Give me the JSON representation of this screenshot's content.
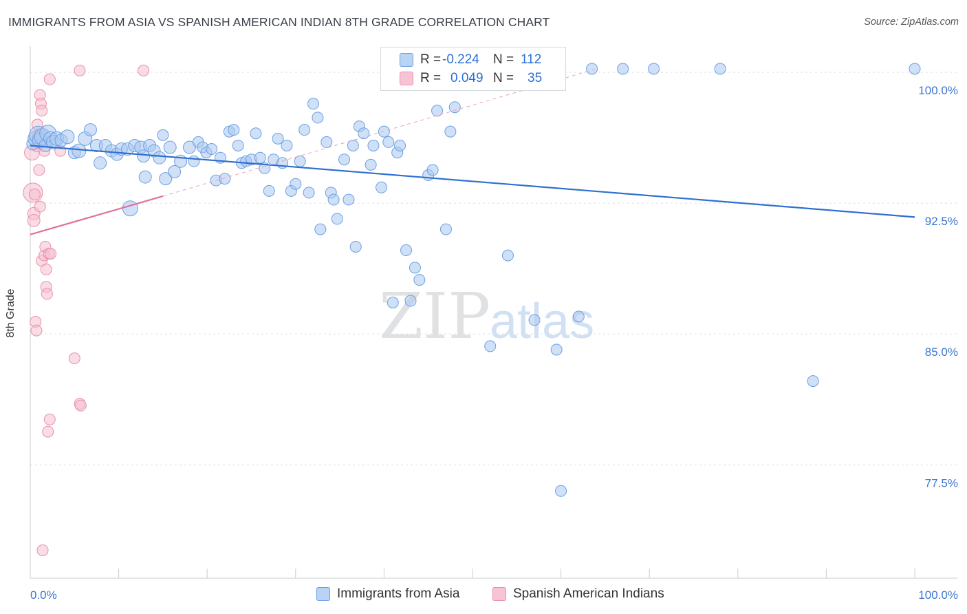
{
  "title": "IMMIGRANTS FROM ASIA VS SPANISH AMERICAN INDIAN 8TH GRADE CORRELATION CHART",
  "source": "Source: ZipAtlas.com",
  "watermark": {
    "zip": "ZIP",
    "atlas": "atlas"
  },
  "legend": {
    "r_label": "R =",
    "n_label": "N =",
    "rows": [
      {
        "r": "-0.224",
        "n": "112",
        "fill": "#b9d3f5",
        "stroke": "#6b9fe3"
      },
      {
        "r": "0.049",
        "n": "35",
        "fill": "#f8c3d4",
        "stroke": "#ea8fab"
      }
    ]
  },
  "bottom_legend": [
    "Immigrants from Asia",
    "Spanish American Indians"
  ],
  "chart_data": {
    "type": "scatter",
    "ylabel": "8th Grade",
    "xlabel": "",
    "xlim": [
      0,
      100
    ],
    "ylim": [
      71.0,
      101.5
    ],
    "x_tick_labels": [
      "0.0%",
      "100.0%"
    ],
    "y_ticks": [
      {
        "value": 100.0,
        "label": "100.0%"
      },
      {
        "value": 92.5,
        "label": "92.5%"
      },
      {
        "value": 85.0,
        "label": "85.0%"
      },
      {
        "value": 77.5,
        "label": "77.5%"
      }
    ],
    "grid": "horizontal-dashed",
    "colors": {
      "blue_fill": "#a9c8f0",
      "blue_stroke": "#6b9fe3",
      "blue_line": "#2f6fd0",
      "pink_fill": "#f6bfd0",
      "pink_stroke": "#ea8fab",
      "pink_line": "#e0709a",
      "tick_label": "#3b74d1"
    },
    "series": [
      {
        "name": "Immigrants from Asia",
        "color": "#6b9fe3",
        "trend": {
          "x0": 0,
          "y0": 95.8,
          "x1": 100,
          "y1": 91.7
        },
        "points": [
          [
            0.3,
            95.9
          ],
          [
            0.6,
            96.2
          ],
          [
            0.9,
            96.4
          ],
          [
            1.1,
            96.1
          ],
          [
            1.4,
            96.3
          ],
          [
            1.7,
            95.8
          ],
          [
            2.0,
            96.5
          ],
          [
            2.3,
            96.2
          ],
          [
            2.6,
            96.0
          ],
          [
            3.0,
            96.2
          ],
          [
            3.5,
            96.1
          ],
          [
            4.2,
            96.3
          ],
          [
            5.0,
            95.4
          ],
          [
            5.5,
            95.5
          ],
          [
            6.2,
            96.2
          ],
          [
            6.8,
            96.7
          ],
          [
            7.5,
            95.8
          ],
          [
            7.9,
            94.8
          ],
          [
            8.5,
            95.8
          ],
          [
            9.2,
            95.5
          ],
          [
            9.8,
            95.3
          ],
          [
            10.3,
            95.6
          ],
          [
            11.0,
            95.6
          ],
          [
            11.3,
            92.2
          ],
          [
            11.8,
            95.8
          ],
          [
            12.5,
            95.7
          ],
          [
            12.8,
            95.2
          ],
          [
            13.0,
            94.0
          ],
          [
            13.5,
            95.8
          ],
          [
            14.0,
            95.5
          ],
          [
            14.6,
            95.1
          ],
          [
            15.0,
            96.4
          ],
          [
            15.3,
            93.9
          ],
          [
            15.8,
            95.7
          ],
          [
            16.3,
            94.3
          ],
          [
            17.0,
            94.9
          ],
          [
            18.0,
            95.7
          ],
          [
            18.5,
            94.9
          ],
          [
            19.0,
            96.0
          ],
          [
            19.5,
            95.7
          ],
          [
            19.9,
            95.4
          ],
          [
            20.5,
            95.6
          ],
          [
            21.0,
            93.8
          ],
          [
            21.5,
            95.1
          ],
          [
            22.0,
            93.9
          ],
          [
            22.5,
            96.6
          ],
          [
            23.0,
            96.7
          ],
          [
            23.5,
            95.8
          ],
          [
            23.9,
            94.8
          ],
          [
            24.4,
            94.9
          ],
          [
            25.0,
            95.0
          ],
          [
            25.5,
            96.5
          ],
          [
            26.0,
            95.1
          ],
          [
            26.5,
            94.5
          ],
          [
            27.0,
            93.2
          ],
          [
            27.5,
            95.0
          ],
          [
            28.0,
            96.2
          ],
          [
            28.5,
            94.8
          ],
          [
            29.0,
            95.8
          ],
          [
            29.5,
            93.2
          ],
          [
            30.0,
            93.6
          ],
          [
            30.5,
            94.9
          ],
          [
            31.0,
            96.7
          ],
          [
            31.5,
            93.1
          ],
          [
            32.0,
            98.2
          ],
          [
            32.5,
            97.4
          ],
          [
            32.8,
            91.0
          ],
          [
            33.5,
            96.0
          ],
          [
            34.0,
            93.1
          ],
          [
            34.3,
            92.7
          ],
          [
            34.7,
            91.6
          ],
          [
            35.5,
            95.0
          ],
          [
            36.0,
            92.7
          ],
          [
            36.5,
            95.8
          ],
          [
            36.8,
            90.0
          ],
          [
            37.2,
            96.9
          ],
          [
            37.7,
            96.5
          ],
          [
            38.5,
            94.7
          ],
          [
            38.8,
            95.8
          ],
          [
            39.7,
            93.4
          ],
          [
            40.0,
            96.6
          ],
          [
            40.5,
            96.0
          ],
          [
            41.0,
            86.8
          ],
          [
            41.5,
            95.4
          ],
          [
            41.8,
            95.8
          ],
          [
            42.5,
            89.8
          ],
          [
            43.0,
            86.9
          ],
          [
            43.5,
            88.8
          ],
          [
            44.0,
            88.1
          ],
          [
            45.0,
            94.1
          ],
          [
            45.5,
            94.4
          ],
          [
            46.0,
            97.8
          ],
          [
            47.0,
            91.0
          ],
          [
            47.5,
            96.6
          ],
          [
            48.0,
            98.0
          ],
          [
            51.5,
            100.2
          ],
          [
            52.0,
            84.3
          ],
          [
            54.0,
            89.5
          ],
          [
            57.0,
            85.8
          ],
          [
            59.5,
            84.1
          ],
          [
            60.0,
            76.0
          ],
          [
            62.0,
            86.0
          ],
          [
            63.5,
            100.2
          ],
          [
            67.0,
            100.2
          ],
          [
            70.5,
            100.2
          ],
          [
            78.0,
            100.2
          ],
          [
            88.5,
            82.3
          ],
          [
            100.0,
            100.2
          ]
        ],
        "point_sizes": [
          9,
          11,
          13,
          11,
          12,
          9,
          12,
          10,
          10,
          10,
          9,
          10,
          9,
          10,
          10,
          9,
          9,
          9,
          9,
          9,
          9,
          9,
          9,
          11,
          9,
          9,
          9,
          9,
          9,
          9,
          9,
          8,
          9,
          9,
          9,
          9,
          9,
          8,
          8,
          8,
          8,
          8,
          8,
          8,
          8,
          8,
          8,
          8,
          8,
          8,
          8,
          8,
          8,
          8,
          8,
          8,
          8,
          8,
          8,
          8,
          8,
          8,
          8,
          8,
          8,
          8,
          8,
          8,
          8,
          8,
          8,
          8,
          8,
          8,
          8,
          8,
          8,
          8,
          8,
          8,
          8,
          8,
          8,
          8,
          8,
          8,
          8,
          8,
          8,
          8,
          8,
          8,
          8,
          8,
          8,
          8,
          8,
          8,
          8,
          8,
          8,
          8,
          8,
          8,
          8,
          8,
          8,
          8,
          8,
          8,
          8
        ]
      },
      {
        "name": "Spanish American Indians",
        "color": "#ea8fab",
        "trend": {
          "x0": 0,
          "y0": 90.7,
          "x1": 15,
          "y1": 92.9,
          "dashed_to": {
            "x": 64,
            "y": 100.2
          }
        },
        "points": [
          [
            0.2,
            95.4
          ],
          [
            0.3,
            93.1
          ],
          [
            0.4,
            91.9
          ],
          [
            0.4,
            91.5
          ],
          [
            0.6,
            85.7
          ],
          [
            0.7,
            85.2
          ],
          [
            0.8,
            95.8
          ],
          [
            0.8,
            97.0
          ],
          [
            0.9,
            96.3
          ],
          [
            1.0,
            96.4
          ],
          [
            1.0,
            94.4
          ],
          [
            1.1,
            92.3
          ],
          [
            1.1,
            98.7
          ],
          [
            1.2,
            98.2
          ],
          [
            1.3,
            97.8
          ],
          [
            1.3,
            89.2
          ],
          [
            1.4,
            72.6
          ],
          [
            1.6,
            89.5
          ],
          [
            1.7,
            90.0
          ],
          [
            1.8,
            88.7
          ],
          [
            1.8,
            87.7
          ],
          [
            1.9,
            87.3
          ],
          [
            2.0,
            79.4
          ],
          [
            2.1,
            89.6
          ],
          [
            2.2,
            80.1
          ],
          [
            2.2,
            99.6
          ],
          [
            2.3,
            89.6
          ],
          [
            1.6,
            95.5
          ],
          [
            3.4,
            95.5
          ],
          [
            5.0,
            83.6
          ],
          [
            5.6,
            81.0
          ],
          [
            5.7,
            80.9
          ],
          [
            5.6,
            100.1
          ],
          [
            12.8,
            100.1
          ],
          [
            0.5,
            93.0
          ]
        ],
        "point_sizes": [
          11,
          14,
          9,
          9,
          8,
          8,
          9,
          8,
          9,
          9,
          8,
          8,
          8,
          8,
          8,
          8,
          8,
          8,
          8,
          8,
          8,
          8,
          8,
          8,
          8,
          8,
          8,
          8,
          8,
          8,
          8,
          8,
          8,
          8,
          8
        ]
      }
    ]
  }
}
